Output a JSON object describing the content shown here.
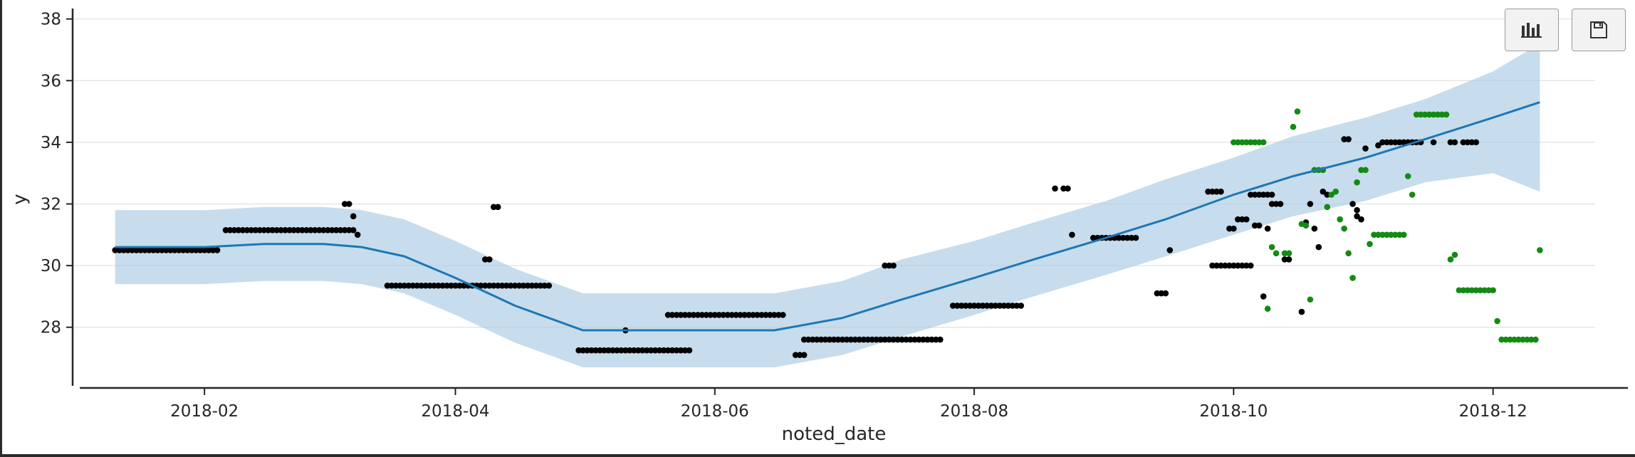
{
  "toolbar": {
    "chart_button_icon": "bar-chart-icon",
    "save_button_icon": "save-icon"
  },
  "colors": {
    "forecast_line": "#1f77b4",
    "interval_fill": "#a9cbe3",
    "history_points": "#000000",
    "test_points": "#138a13",
    "grid": "#e6e6e6"
  },
  "chart_data": {
    "type": "line",
    "xlabel": "noted_date",
    "ylabel": "y",
    "xlim": [
      "2018-01-01",
      "2018-12-25"
    ],
    "ylim": [
      26.1,
      38.2
    ],
    "yticks": [
      28,
      30,
      32,
      34,
      36,
      38
    ],
    "xticks": [
      "2018-02",
      "2018-04",
      "2018-06",
      "2018-08",
      "2018-10",
      "2018-12"
    ],
    "grid": "horizontal",
    "series": [
      {
        "kind": "line",
        "role": "forecast",
        "x": [
          "2018-01-11",
          "2018-01-20",
          "2018-02-01",
          "2018-02-15",
          "2018-03-01",
          "2018-03-10",
          "2018-03-20",
          "2018-04-01",
          "2018-04-15",
          "2018-05-01",
          "2018-05-15",
          "2018-06-01",
          "2018-06-15",
          "2018-07-01",
          "2018-07-15",
          "2018-08-01",
          "2018-08-15",
          "2018-09-01",
          "2018-09-15",
          "2018-10-01",
          "2018-10-15",
          "2018-11-01",
          "2018-11-15",
          "2018-12-01",
          "2018-12-12"
        ],
        "values": [
          30.6,
          30.6,
          30.6,
          30.7,
          30.7,
          30.6,
          30.3,
          29.6,
          28.7,
          27.9,
          27.9,
          27.9,
          27.9,
          28.3,
          28.9,
          29.6,
          30.2,
          30.9,
          31.5,
          32.3,
          32.9,
          33.5,
          34.1,
          34.8,
          35.3
        ]
      },
      {
        "kind": "interval",
        "role": "uncertainty",
        "x": [
          "2018-01-11",
          "2018-01-20",
          "2018-02-01",
          "2018-02-15",
          "2018-03-01",
          "2018-03-10",
          "2018-03-20",
          "2018-04-01",
          "2018-04-15",
          "2018-05-01",
          "2018-05-15",
          "2018-06-01",
          "2018-06-15",
          "2018-07-01",
          "2018-07-15",
          "2018-08-01",
          "2018-08-15",
          "2018-09-01",
          "2018-09-15",
          "2018-10-01",
          "2018-10-15",
          "2018-11-01",
          "2018-11-15",
          "2018-12-01",
          "2018-12-12"
        ],
        "upper": [
          31.8,
          31.8,
          31.8,
          31.9,
          31.9,
          31.8,
          31.5,
          30.8,
          29.9,
          29.1,
          29.1,
          29.1,
          29.1,
          29.5,
          30.2,
          30.8,
          31.4,
          32.1,
          32.8,
          33.5,
          34.2,
          34.8,
          35.4,
          36.3,
          37.2
        ],
        "lower": [
          29.4,
          29.4,
          29.4,
          29.5,
          29.5,
          29.4,
          29.1,
          28.4,
          27.5,
          26.7,
          26.7,
          26.7,
          26.7,
          27.1,
          27.7,
          28.4,
          29.0,
          29.7,
          30.3,
          31.0,
          31.6,
          32.1,
          32.7,
          33.0,
          32.4
        ]
      },
      {
        "kind": "scatter",
        "role": "history",
        "segments": [
          {
            "from": "2018-01-11",
            "to": "2018-02-04",
            "y": 30.5
          },
          {
            "from": "2018-02-06",
            "to": "2018-03-08",
            "y": 31.15
          },
          {
            "from": "2018-03-16",
            "to": "2018-04-23",
            "y": 29.35
          },
          {
            "from": "2018-04-30",
            "to": "2018-05-26",
            "y": 27.25
          },
          {
            "from": "2018-05-21",
            "to": "2018-06-17",
            "y": 28.4
          },
          {
            "from": "2018-06-22",
            "to": "2018-07-24",
            "y": 27.6
          },
          {
            "from": "2018-07-27",
            "to": "2018-08-12",
            "y": 28.7
          },
          {
            "from": "2018-08-29",
            "to": "2018-09-08",
            "y": 30.9
          },
          {
            "from": "2018-09-26",
            "to": "2018-10-05",
            "y": 30.0
          }
        ],
        "x": [
          "2018-03-06",
          "2018-03-07",
          "2018-03-08",
          "2018-03-09",
          "2018-04-08",
          "2018-04-09",
          "2018-04-10",
          "2018-04-11",
          "2018-05-11",
          "2018-06-20",
          "2018-06-21",
          "2018-06-22",
          "2018-07-11",
          "2018-07-12",
          "2018-07-13",
          "2018-08-20",
          "2018-08-22",
          "2018-08-23",
          "2018-08-24",
          "2018-09-13",
          "2018-09-14",
          "2018-09-15",
          "2018-09-16",
          "2018-09-25",
          "2018-09-26",
          "2018-09-27",
          "2018-09-28",
          "2018-09-30",
          "2018-10-01",
          "2018-10-02",
          "2018-10-03",
          "2018-10-04",
          "2018-10-05",
          "2018-10-06",
          "2018-10-07",
          "2018-10-08",
          "2018-10-09",
          "2018-10-10",
          "2018-10-06",
          "2018-10-07",
          "2018-10-08",
          "2018-10-09",
          "2018-10-10",
          "2018-10-11",
          "2018-10-12",
          "2018-10-13",
          "2018-10-14",
          "2018-10-17",
          "2018-10-18",
          "2018-10-19",
          "2018-10-20",
          "2018-10-21",
          "2018-10-22",
          "2018-10-23",
          "2018-10-27",
          "2018-10-28",
          "2018-10-29",
          "2018-10-30",
          "2018-10-31",
          "2018-10-30",
          "2018-11-01",
          "2018-11-04",
          "2018-11-05",
          "2018-11-06",
          "2018-11-07",
          "2018-11-08",
          "2018-11-10",
          "2018-11-11",
          "2018-11-12",
          "2018-11-09",
          "2018-11-10",
          "2018-11-11",
          "2018-11-12",
          "2018-11-13",
          "2018-11-14",
          "2018-11-17",
          "2018-11-21",
          "2018-11-22",
          "2018-11-24",
          "2018-11-25",
          "2018-11-26",
          "2018-11-27"
        ],
        "values": [
          32.0,
          32.0,
          31.6,
          31.0,
          30.2,
          30.2,
          31.9,
          31.9,
          27.9,
          27.1,
          27.1,
          27.1,
          30.0,
          30.0,
          30.0,
          32.5,
          32.5,
          32.5,
          31.0,
          29.1,
          29.1,
          29.1,
          30.5,
          32.4,
          32.4,
          32.4,
          32.4,
          31.2,
          31.2,
          31.5,
          31.5,
          31.5,
          32.3,
          32.3,
          32.3,
          32.3,
          32.3,
          32.3,
          31.3,
          31.3,
          29.0,
          31.2,
          32.0,
          32.0,
          32.0,
          30.2,
          30.2,
          28.5,
          31.4,
          32.0,
          31.2,
          30.6,
          32.4,
          32.3,
          34.1,
          34.1,
          32.0,
          31.6,
          31.5,
          31.8,
          33.8,
          33.9,
          34.0,
          34.0,
          34.0,
          34.0,
          34.0,
          34.0,
          34.0,
          34.0,
          34.0,
          34.0,
          34.0,
          34.0,
          34.0,
          34.0,
          34.0,
          34.0,
          34.0,
          34.0,
          34.0,
          34.0
        ]
      },
      {
        "kind": "scatter",
        "role": "test",
        "x": [
          "2018-10-01",
          "2018-10-02",
          "2018-10-03",
          "2018-10-04",
          "2018-10-05",
          "2018-10-06",
          "2018-10-07",
          "2018-10-08",
          "2018-10-09",
          "2018-10-10",
          "2018-10-11",
          "2018-10-13",
          "2018-10-14",
          "2018-10-15",
          "2018-10-16",
          "2018-10-17",
          "2018-10-18",
          "2018-10-19",
          "2018-10-20",
          "2018-10-21",
          "2018-10-22",
          "2018-10-23",
          "2018-10-24",
          "2018-10-25",
          "2018-10-26",
          "2018-10-27",
          "2018-10-28",
          "2018-10-29",
          "2018-10-30",
          "2018-10-31",
          "2018-11-01",
          "2018-11-02",
          "2018-11-03",
          "2018-11-04",
          "2018-11-05",
          "2018-11-06",
          "2018-11-07",
          "2018-11-08",
          "2018-11-09",
          "2018-11-10",
          "2018-11-11",
          "2018-11-12",
          "2018-11-13",
          "2018-11-14",
          "2018-11-15",
          "2018-11-16",
          "2018-11-17",
          "2018-11-18",
          "2018-11-19",
          "2018-11-20",
          "2018-11-21",
          "2018-11-22",
          "2018-11-23",
          "2018-11-24",
          "2018-11-25",
          "2018-11-26",
          "2018-11-27",
          "2018-11-28",
          "2018-11-29",
          "2018-11-30",
          "2018-12-01",
          "2018-12-02",
          "2018-12-03",
          "2018-12-04",
          "2018-12-05",
          "2018-12-06",
          "2018-12-07",
          "2018-12-08",
          "2018-12-09",
          "2018-12-10",
          "2018-12-11",
          "2018-12-12"
        ],
        "values": [
          34.0,
          34.0,
          34.0,
          34.0,
          34.0,
          34.0,
          34.0,
          34.0,
          28.6,
          30.6,
          30.4,
          30.4,
          30.4,
          34.5,
          35.0,
          31.35,
          31.3,
          28.9,
          33.1,
          33.1,
          33.1,
          31.9,
          32.3,
          32.4,
          31.5,
          31.2,
          30.4,
          29.6,
          32.7,
          33.1,
          33.1,
          30.7,
          31.0,
          31.0,
          31.0,
          31.0,
          31.0,
          31.0,
          31.0,
          31.0,
          32.9,
          32.3,
          34.9,
          34.9,
          34.9,
          34.9,
          34.9,
          34.9,
          34.9,
          34.9,
          30.2,
          30.35,
          29.2,
          29.2,
          29.2,
          29.2,
          29.2,
          29.2,
          29.2,
          29.2,
          29.2,
          28.2,
          27.6,
          27.6,
          27.6,
          27.6,
          27.6,
          27.6,
          27.6,
          27.6,
          27.6,
          30.5
        ]
      }
    ]
  }
}
